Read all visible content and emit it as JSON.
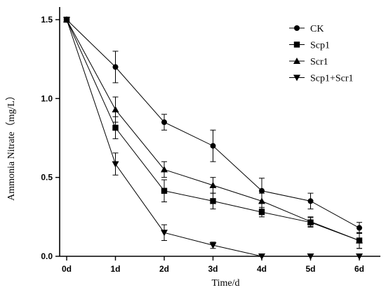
{
  "chart_data": {
    "type": "line",
    "title": "",
    "xlabel": "Time/d",
    "ylabel": "Ammonia Nitrate（mg/L）",
    "categories": [
      "0d",
      "1d",
      "2d",
      "3d",
      "4d",
      "5d",
      "6d"
    ],
    "yticks": [
      "0.0",
      "0.5",
      "1.0",
      "1.5"
    ],
    "ylim": [
      0,
      1.5
    ],
    "grid": false,
    "legend_position": "top-right",
    "series": [
      {
        "name": "CK",
        "marker": "circle",
        "values": [
          1.5,
          1.2,
          0.85,
          0.7,
          0.415,
          0.35,
          0.18
        ],
        "errors": [
          0,
          0.1,
          0.05,
          0.1,
          0.08,
          0.05,
          0.035
        ]
      },
      {
        "name": "Scp1",
        "marker": "square",
        "values": [
          1.5,
          0.815,
          0.415,
          0.35,
          0.28,
          0.215,
          0.1
        ],
        "errors": [
          0,
          0.07,
          0.07,
          0.05,
          0.03,
          0.03,
          0.05
        ]
      },
      {
        "name": "Scr1",
        "marker": "triangle-up",
        "values": [
          1.5,
          0.93,
          0.55,
          0.45,
          0.35,
          0.22,
          0.1
        ],
        "errors": [
          0,
          0.08,
          0.05,
          0.05,
          0.05,
          0.03,
          0.05
        ]
      },
      {
        "name": "Scp1+Scr1",
        "marker": "triangle-down",
        "values": [
          1.5,
          0.585,
          0.15,
          0.07,
          0.0,
          0.0,
          0.0
        ],
        "errors": [
          0,
          0.07,
          0.05,
          0.02,
          0,
          0,
          0
        ]
      }
    ]
  }
}
